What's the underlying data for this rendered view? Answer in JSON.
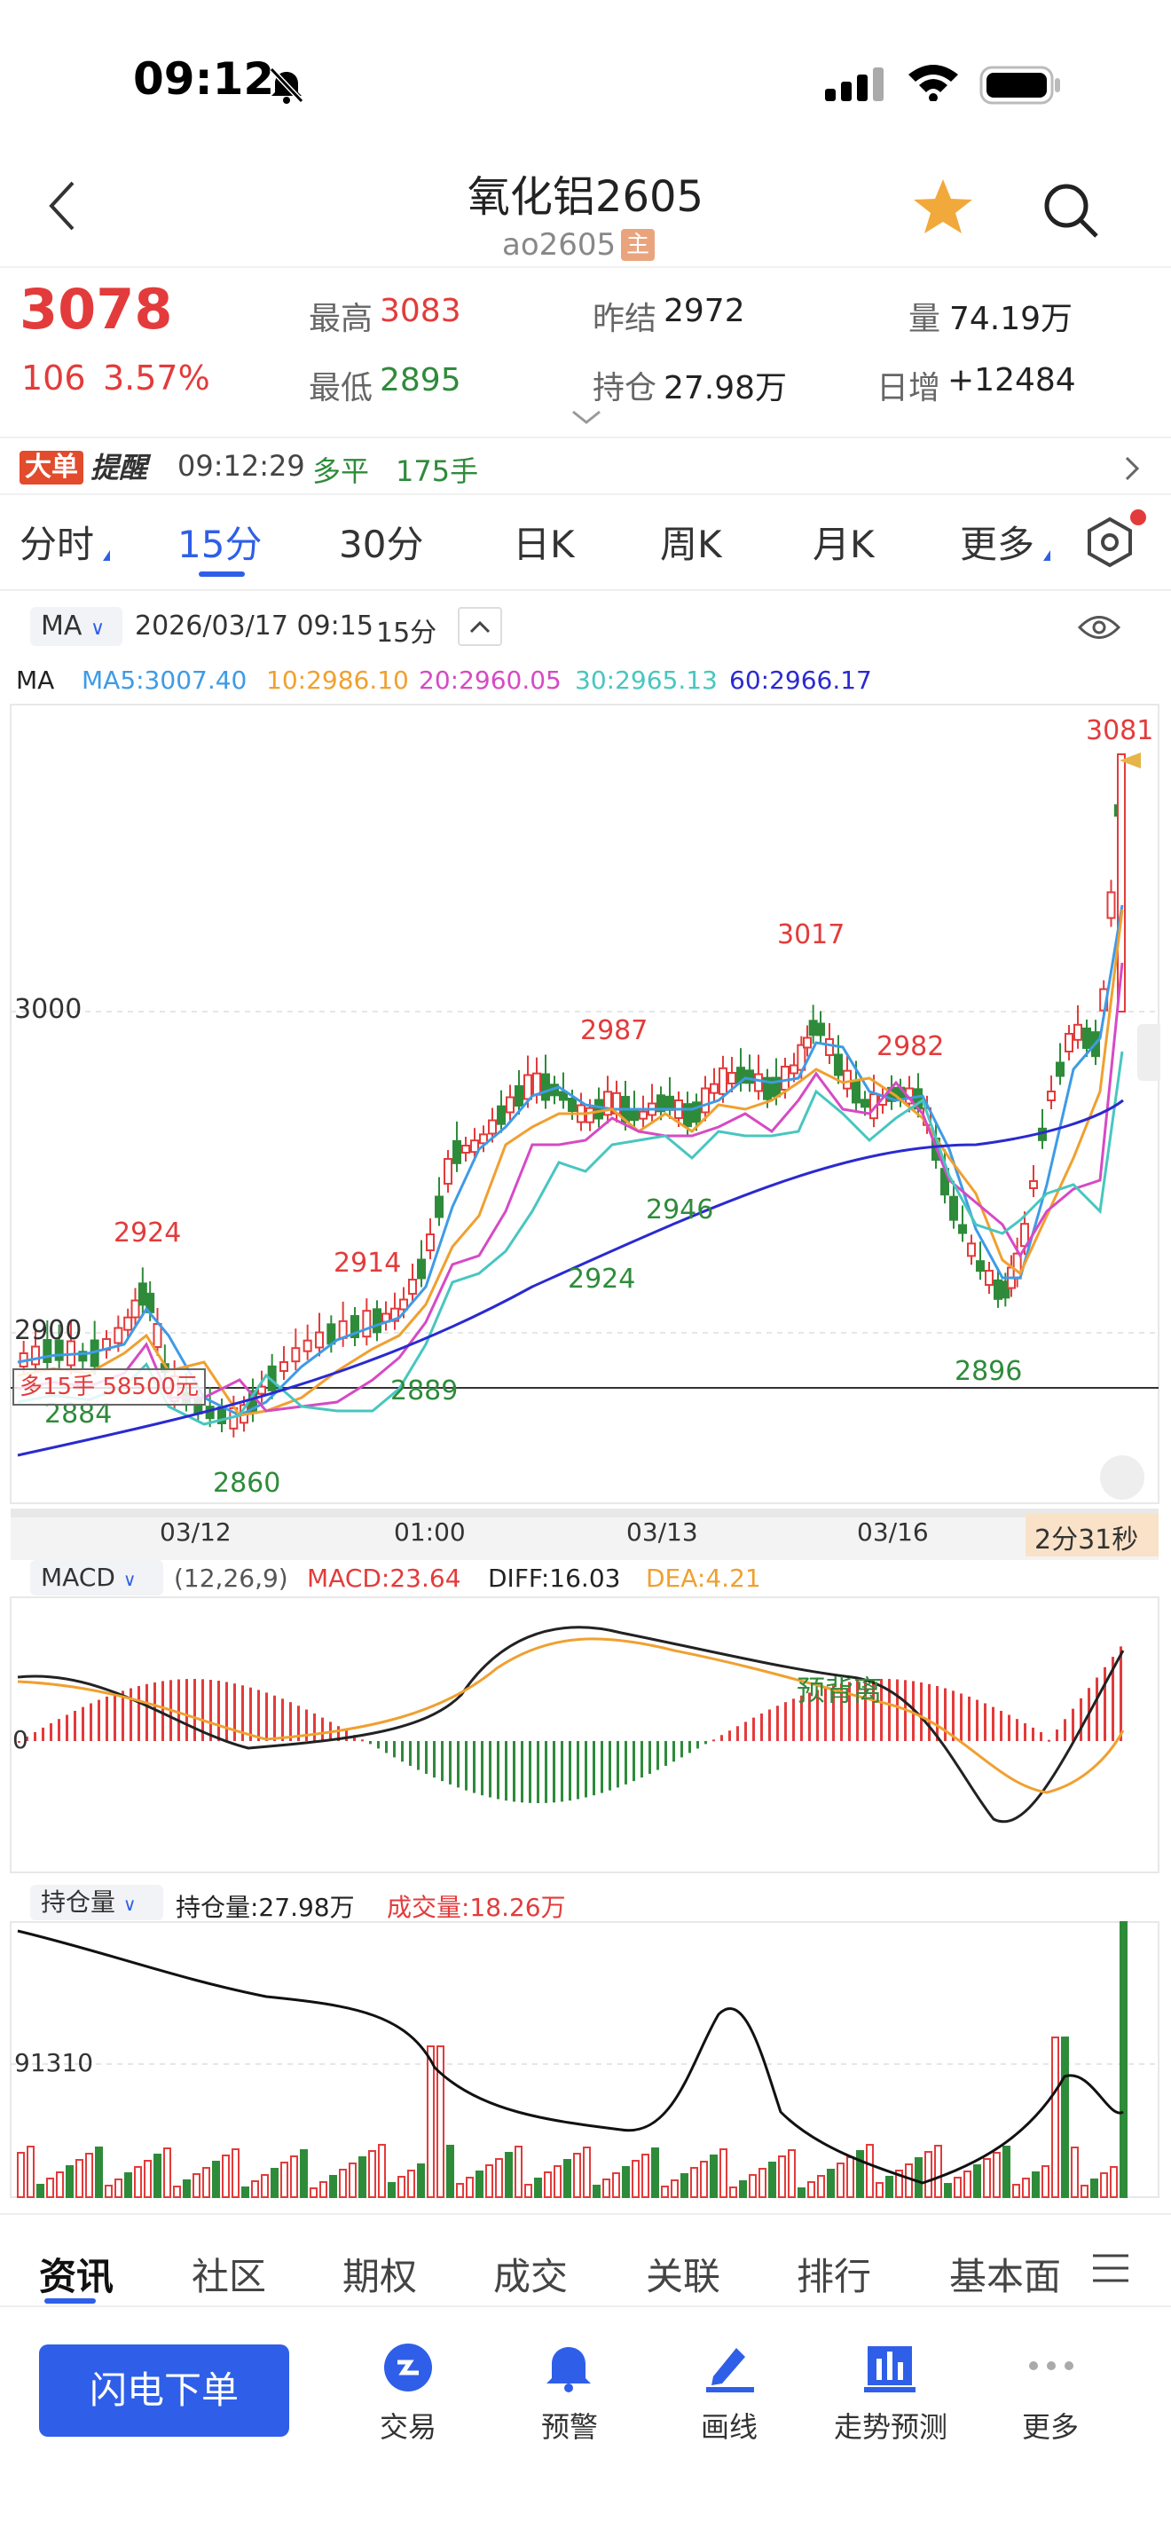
{
  "status_bar": {
    "time": "09:12"
  },
  "nav": {
    "title": "氧化铝2605",
    "code": "ao2605",
    "main_badge": "主"
  },
  "quote": {
    "last": "3078",
    "change": "106",
    "change_pct": "3.57%",
    "high_label": "最高",
    "high": "3083",
    "low_label": "最低",
    "low": "2895",
    "prev_settle_label": "昨结",
    "prev_settle": "2972",
    "open_interest_label": "持仓",
    "open_interest": "27.98万",
    "volume_label": "量",
    "volume": "74.19万",
    "daily_increase_label": "日增",
    "daily_increase": "+12484"
  },
  "alert": {
    "tag1": "大单",
    "tag2": "提醒",
    "time": "09:12:29",
    "direction": "多平",
    "qty": "175手"
  },
  "period_tabs": [
    "分时",
    "15分",
    "30分",
    "日K",
    "周K",
    "月K",
    "更多"
  ],
  "active_period": "15分",
  "chart_header": {
    "indicator": "MA",
    "datetime": "2026/03/17 09:15",
    "period": "15分"
  },
  "ma_legend": {
    "title": "MA",
    "ma5": "MA5:3007.40",
    "ma10": "10:2986.10",
    "ma20": "20:2960.05",
    "ma30": "30:2965.13",
    "ma60": "60:2966.17"
  },
  "colors": {
    "up": "#e33b3b",
    "down": "#2e8b3a",
    "ma5": "#3e9be6",
    "ma10": "#f0a030",
    "ma20": "#d64ac4",
    "ma30": "#48c6c0",
    "ma60": "#2a2ad0",
    "accent": "#2f5fe8"
  },
  "chart_data": {
    "type": "candlestick",
    "y_tick_labels": [
      "3000",
      "2900"
    ],
    "x_tick_labels": [
      "03/12",
      "01:00",
      "03/13",
      "03/16"
    ],
    "annotations": {
      "highs": [
        "2924",
        "2914",
        "2987",
        "3017",
        "2982",
        "3081"
      ],
      "lows": [
        "2884",
        "2860",
        "2889",
        "2924",
        "2946",
        "2896"
      ]
    },
    "position_marker": "多15手 58500元",
    "countdown": "2分31秒"
  },
  "macd": {
    "indicator": "MACD",
    "params": "(12,26,9)",
    "macd": "MACD:23.64",
    "diff": "DIFF:16.03",
    "dea": "DEA:4.21",
    "zero_label": "0",
    "annotation": "预背离"
  },
  "oi_panel": {
    "indicator": "持仓量",
    "oi": "持仓量:27.98万",
    "volume": "成交量:18.26万",
    "tick_label": "91310"
  },
  "bottom_tabs": [
    "资讯",
    "社区",
    "期权",
    "成交",
    "关联",
    "排行",
    "基本面"
  ],
  "actions": {
    "flash_order": "闪电下单",
    "items": [
      "交易",
      "预警",
      "画线",
      "走势预测",
      "更多"
    ]
  }
}
